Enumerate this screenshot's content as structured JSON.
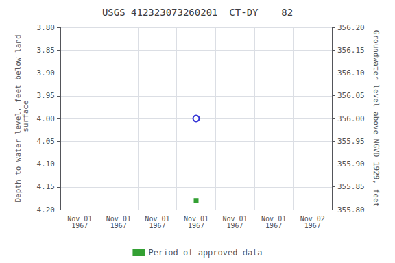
{
  "chart_data": {
    "type": "scatter",
    "title": "USGS 412323073260201  CT-DY    82",
    "ylabel": "Depth to water level, feet below land\n surface",
    "y2label": "Groundwater level above NGVD 1929, feet",
    "categories": [
      "Nov 01\n1967",
      "Nov 01\n1967",
      "Nov 01\n1967",
      "Nov 01\n1967",
      "Nov 01\n1967",
      "Nov 01\n1967",
      "Nov 02\n1967"
    ],
    "series": [
      {
        "color": "#0000cc",
        "marker": "circle",
        "values": [
          null,
          null,
          null,
          4.0,
          null,
          null,
          null
        ]
      },
      {
        "name": "Period of approved data",
        "color": "#008800",
        "marker": "square",
        "values": [
          null,
          null,
          null,
          4.18,
          null,
          null,
          null
        ]
      }
    ],
    "ylim": [
      4.2,
      3.8
    ],
    "yticks": [
      {
        "value": 3.8,
        "label": "3.80"
      },
      {
        "value": 3.85,
        "label": "3.85"
      },
      {
        "value": 3.9,
        "label": "3.90"
      },
      {
        "value": 3.95,
        "label": "3.95"
      },
      {
        "value": 4.0,
        "label": "4.00"
      },
      {
        "value": 4.05,
        "label": "4.05"
      },
      {
        "value": 4.1,
        "label": "4.10"
      },
      {
        "value": 4.15,
        "label": "4.15"
      },
      {
        "value": 4.2,
        "label": "4.20"
      }
    ],
    "y2lim": [
      355.8,
      356.2
    ],
    "y2ticks": [
      {
        "value": 355.8,
        "label": "355.80"
      },
      {
        "value": 355.85,
        "label": "355.85"
      },
      {
        "value": 355.9,
        "label": "355.90"
      },
      {
        "value": 355.95,
        "label": "355.95"
      },
      {
        "value": 356.0,
        "label": "356.00"
      },
      {
        "value": 356.05,
        "label": "356.05"
      },
      {
        "value": 356.1,
        "label": "356.10"
      },
      {
        "value": 356.15,
        "label": "356.15"
      },
      {
        "value": 356.2,
        "label": "356.20"
      }
    ],
    "grid": true,
    "legend": "bottom"
  }
}
